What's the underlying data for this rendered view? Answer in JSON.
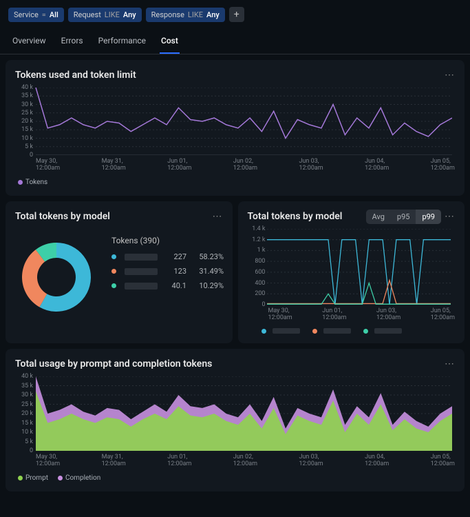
{
  "filters": [
    {
      "key": "Service",
      "op": "=",
      "val": "All"
    },
    {
      "key": "Request",
      "op": "LIKE",
      "val": "Any"
    },
    {
      "key": "Response",
      "op": "LIKE",
      "val": "Any"
    }
  ],
  "tabs": [
    "Overview",
    "Errors",
    "Performance",
    "Cost"
  ],
  "active_tab": "Cost",
  "tokens_chart": {
    "title": "Tokens used and token limit",
    "type": "line",
    "line_color": "#a478d8",
    "ylim": [
      0,
      40000
    ],
    "ytick_step": 5000,
    "y_labels": [
      "40 k",
      "35 k",
      "30 k",
      "25 k",
      "20 k",
      "15 k",
      "10 k",
      "5 k",
      "0"
    ],
    "x_labels": [
      "May 30,\n12:00am",
      "May 31,\n12:00am",
      "Jun 01,\n12:00am",
      "Jun 02,\n12:00am",
      "Jun 03,\n12:00am",
      "Jun 04,\n12:00am",
      "Jun 05,\n12:00am"
    ],
    "values": [
      40000,
      16000,
      18000,
      22000,
      18000,
      16000,
      20000,
      19000,
      14000,
      18000,
      22000,
      18000,
      28000,
      21000,
      20000,
      22000,
      18000,
      16000,
      22000,
      14000,
      26000,
      10000,
      21000,
      18000,
      16000,
      30000,
      12000,
      22000,
      16000,
      28000,
      12000,
      19000,
      14000,
      11000,
      18000,
      22000
    ],
    "legend": [
      {
        "label": "Tokens",
        "color": "#a478d8"
      }
    ],
    "background_color": "#12181f",
    "grid_color": "#2a3038"
  },
  "donut_chart": {
    "title": "Total tokens by model",
    "type": "pie",
    "stats_title": "Tokens (390)",
    "slices": [
      {
        "color": "#3db8d8",
        "value": "227",
        "pct": "58.23%"
      },
      {
        "color": "#f0875e",
        "value": "123",
        "pct": "31.49%"
      },
      {
        "color": "#3dcfa8",
        "value": "40.1",
        "pct": "10.29%"
      }
    ],
    "background_color": "#12181f"
  },
  "model_line_chart": {
    "title": "Total tokens by model",
    "type": "line",
    "agg_options": [
      "Avg",
      "p95",
      "p99"
    ],
    "agg_selected": "p99",
    "ylim": [
      0,
      1400
    ],
    "y_labels": [
      "1.4 k",
      "1.2 k",
      "1 k",
      "800",
      "600",
      "400",
      "200",
      "0"
    ],
    "x_labels": [
      "May 30,\n12:00am",
      "Jun 01,\n12:00am",
      "Jun 03,\n12:00am",
      "Jun 05,\n12:00am"
    ],
    "series": [
      {
        "color": "#3db8d8",
        "values": [
          1200,
          1200,
          1200,
          1200,
          1200,
          1200,
          1200,
          1200,
          1200,
          1200,
          0,
          1200,
          1200,
          1200,
          0,
          1200,
          1200,
          1200,
          0,
          1200,
          1200,
          1200,
          0,
          1200,
          1200,
          1200,
          1200,
          1200
        ]
      },
      {
        "color": "#f0875e",
        "values": [
          20,
          20,
          20,
          20,
          20,
          20,
          20,
          20,
          20,
          20,
          20,
          20,
          20,
          20,
          20,
          20,
          20,
          20,
          450,
          20,
          20,
          20,
          20,
          20,
          20,
          20,
          20,
          20
        ]
      },
      {
        "color": "#3dcfa8",
        "values": [
          10,
          10,
          10,
          10,
          10,
          10,
          10,
          10,
          10,
          200,
          10,
          10,
          10,
          10,
          10,
          400,
          10,
          10,
          10,
          10,
          10,
          10,
          10,
          10,
          10,
          10,
          10,
          10
        ]
      }
    ],
    "legend_colors": [
      "#3db8d8",
      "#f0875e",
      "#3dcfa8"
    ],
    "background_color": "#12181f",
    "grid_color": "#2a3038"
  },
  "usage_chart": {
    "title": "Total usage by prompt and completion tokens",
    "type": "area",
    "ylim": [
      0,
      40000
    ],
    "ytick_step": 5000,
    "y_labels": [
      "40 k",
      "35 k",
      "30 k",
      "25 k",
      "20 k",
      "15 k",
      "10 k",
      "5 k",
      "0"
    ],
    "x_labels": [
      "May 30,\n12:00am",
      "May 31,\n12:00am",
      "Jun 01,\n12:00am",
      "Jun 02,\n12:00am",
      "Jun 03,\n12:00am",
      "Jun 04,\n12:00am",
      "Jun 05,\n12:00am"
    ],
    "series": [
      {
        "label": "Prompt",
        "color": "#8fd14f",
        "values": [
          32000,
          15000,
          17000,
          20000,
          17000,
          15000,
          18000,
          17000,
          13000,
          17000,
          20000,
          17000,
          24000,
          19000,
          18000,
          20000,
          16000,
          14000,
          20000,
          12000,
          23000,
          9000,
          19000,
          16000,
          14000,
          27000,
          10000,
          20000,
          14000,
          25000,
          11000,
          17000,
          12000,
          10000,
          16000,
          20000
        ]
      },
      {
        "label": "Completion",
        "color": "#c890e0",
        "values": [
          40000,
          20000,
          22000,
          25000,
          21000,
          19000,
          23000,
          22000,
          17000,
          21000,
          25000,
          21000,
          30000,
          24000,
          23000,
          25000,
          20000,
          18000,
          25000,
          16000,
          29000,
          12000,
          23000,
          20000,
          18000,
          33000,
          14000,
          24000,
          18000,
          31000,
          14000,
          21000,
          16000,
          13000,
          20000,
          24000
        ]
      }
    ],
    "background_color": "#12181f",
    "grid_color": "#2a3038"
  }
}
